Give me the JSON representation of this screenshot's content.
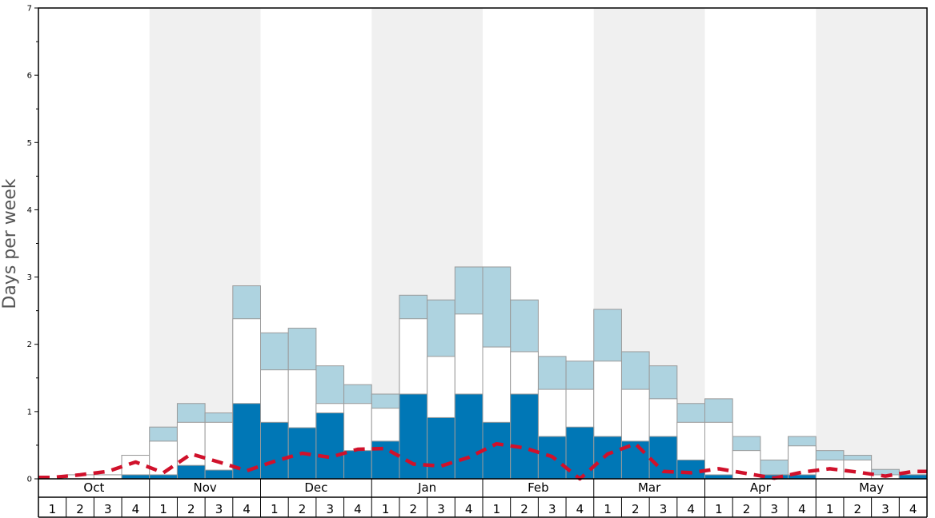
{
  "chart_data": {
    "type": "bar",
    "ylabel": "Days per week",
    "ylim": [
      0,
      7
    ],
    "yticks": [
      "0",
      "1",
      "2",
      "3",
      "4",
      "5",
      "6",
      "7"
    ],
    "months": [
      "Oct",
      "Nov",
      "Dec",
      "Jan",
      "Feb",
      "Mar",
      "Apr",
      "May"
    ],
    "weeks": [
      "1",
      "2",
      "3",
      "4"
    ],
    "legend": "none",
    "colors": {
      "dark": "#0077b6",
      "middle": "#ffffff",
      "light": "#aed3e0",
      "line": "#d0112b",
      "band": "#f0f0f0"
    },
    "series": [
      {
        "values": [
          0,
          0,
          0,
          0.06,
          0.06,
          0.2,
          0.13,
          1.12,
          0.84,
          0.76,
          0.98,
          0.42,
          0.56,
          1.26,
          0.91,
          1.26,
          0.84,
          1.26,
          0.63,
          0.77,
          0.63,
          0.56,
          0.63,
          0.28,
          0.06,
          0,
          0.06,
          0.06,
          0,
          0,
          0,
          0.06
        ]
      },
      {
        "values": [
          0,
          0.06,
          0.06,
          0.35,
          0.56,
          0.84,
          0.84,
          2.38,
          1.62,
          1.62,
          1.12,
          1.12,
          1.05,
          2.38,
          1.82,
          2.45,
          1.96,
          1.89,
          1.33,
          1.33,
          1.75,
          1.33,
          1.19,
          0.84,
          0.84,
          0.42,
          0.06,
          0.49,
          0.28,
          0.28,
          0.06,
          0.06
        ]
      },
      {
        "values": [
          0,
          0.06,
          0.06,
          0.35,
          0.77,
          1.12,
          0.98,
          2.87,
          2.17,
          2.24,
          1.68,
          1.4,
          1.26,
          2.73,
          2.66,
          3.15,
          3.15,
          2.66,
          1.82,
          1.75,
          2.52,
          1.89,
          1.68,
          1.12,
          1.19,
          0.63,
          0.28,
          0.63,
          0.42,
          0.35,
          0.14,
          0.06
        ]
      },
      {
        "values": [
          0.02,
          0.06,
          0.11,
          0.25,
          0.09,
          0.37,
          0.25,
          0.12,
          0.26,
          0.38,
          0.32,
          0.44,
          0.45,
          0.22,
          0.19,
          0.32,
          0.52,
          0.46,
          0.33,
          0,
          0.37,
          0.52,
          0.11,
          0.09,
          0.15,
          0.08,
          0.01,
          0.1,
          0.15,
          0.1,
          0.04,
          0.11
        ]
      }
    ]
  }
}
